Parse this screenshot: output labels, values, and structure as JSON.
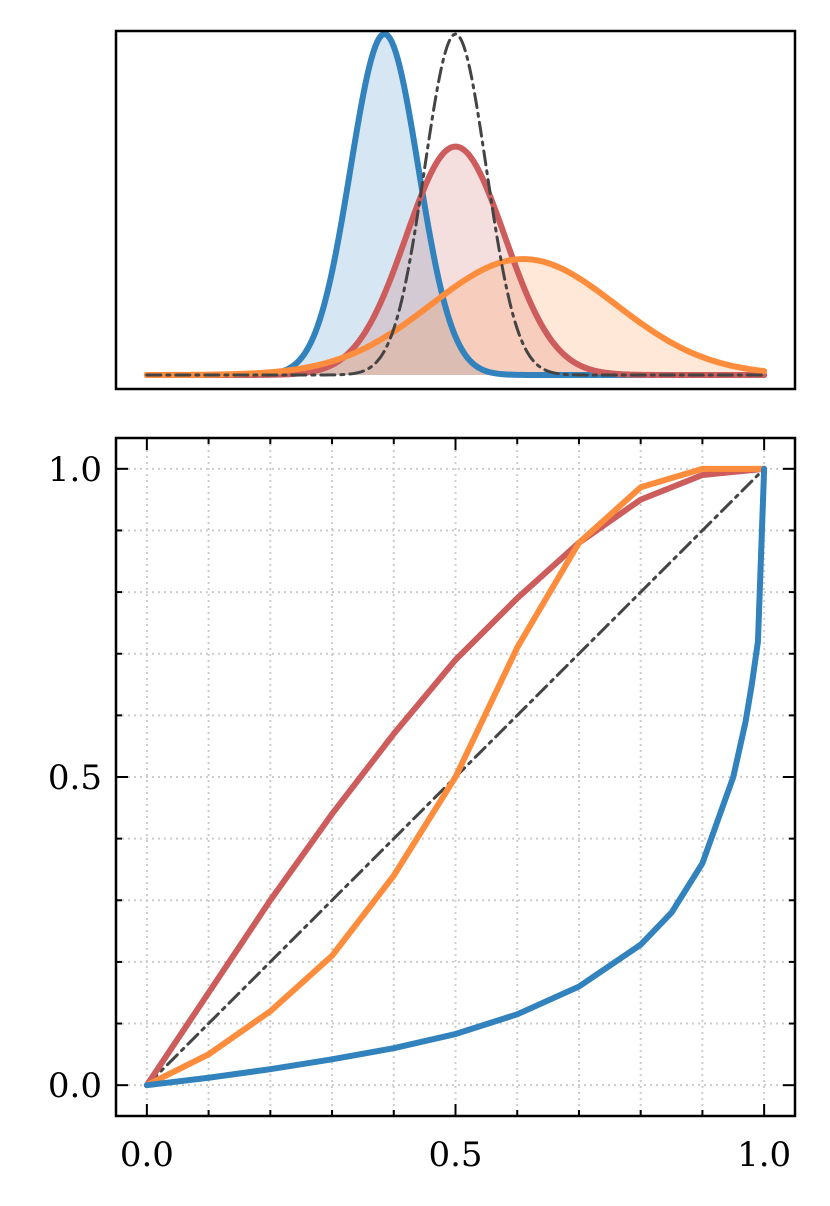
{
  "chart_data": [
    {
      "type": "area",
      "role": "density",
      "xlim": [
        -0.05,
        1.05
      ],
      "ylim": [
        0,
        1.05
      ],
      "grid": false,
      "xticks": [],
      "yticks": [],
      "series": [
        {
          "name": "blue",
          "color": "#3182bd",
          "kind": "normal",
          "mean": 0.385,
          "sd": 0.055,
          "peak": 1.0,
          "fill": true,
          "style": "solid"
        },
        {
          "name": "red",
          "color": "#cd5c5c",
          "kind": "normal",
          "mean": 0.5,
          "sd": 0.08,
          "peak": 0.67,
          "fill": true,
          "style": "solid"
        },
        {
          "name": "orange",
          "color": "#fd8d3c",
          "kind": "normal",
          "mean": 0.61,
          "sd": 0.15,
          "peak": 0.34,
          "fill": true,
          "style": "solid"
        },
        {
          "name": "reference",
          "color": "#444444",
          "kind": "normal",
          "mean": 0.5,
          "sd": 0.05,
          "peak": 1.0,
          "fill": false,
          "style": "dashdot"
        }
      ]
    },
    {
      "type": "line",
      "role": "cdf-mapping",
      "xlim": [
        -0.05,
        1.05
      ],
      "ylim": [
        -0.05,
        1.05
      ],
      "grid": true,
      "xticks": [
        0.0,
        0.5,
        1.0
      ],
      "xtick_labels": [
        "0.0",
        "0.5",
        "1.0"
      ],
      "yticks": [
        0.0,
        0.5,
        1.0
      ],
      "ytick_labels": [
        "0.0",
        "0.5",
        "1.0"
      ],
      "minor_step": 0.1,
      "series": [
        {
          "name": "reference",
          "color": "#444444",
          "style": "dashdot",
          "x": [
            0,
            1
          ],
          "y": [
            0,
            1
          ]
        },
        {
          "name": "red",
          "color": "#cd5c5c",
          "style": "solid",
          "x": [
            0,
            0.1,
            0.2,
            0.3,
            0.4,
            0.5,
            0.6,
            0.7,
            0.8,
            0.9,
            1.0
          ],
          "y": [
            0,
            0.15,
            0.3,
            0.44,
            0.57,
            0.69,
            0.79,
            0.88,
            0.95,
            0.99,
            1.0
          ]
        },
        {
          "name": "orange",
          "color": "#fd8d3c",
          "style": "solid",
          "x": [
            0,
            0.1,
            0.2,
            0.3,
            0.4,
            0.5,
            0.6,
            0.7,
            0.8,
            0.9,
            1.0
          ],
          "y": [
            0,
            0.05,
            0.12,
            0.21,
            0.34,
            0.5,
            0.71,
            0.88,
            0.97,
            1.0,
            1.0
          ]
        },
        {
          "name": "blue",
          "color": "#3182bd",
          "style": "solid",
          "x": [
            0,
            0.1,
            0.2,
            0.3,
            0.4,
            0.5,
            0.6,
            0.7,
            0.8,
            0.85,
            0.9,
            0.95,
            0.97,
            0.98,
            0.99,
            1.0
          ],
          "y": [
            0,
            0.012,
            0.026,
            0.042,
            0.06,
            0.083,
            0.115,
            0.16,
            0.228,
            0.28,
            0.36,
            0.5,
            0.59,
            0.65,
            0.72,
            1.0
          ]
        }
      ]
    }
  ]
}
